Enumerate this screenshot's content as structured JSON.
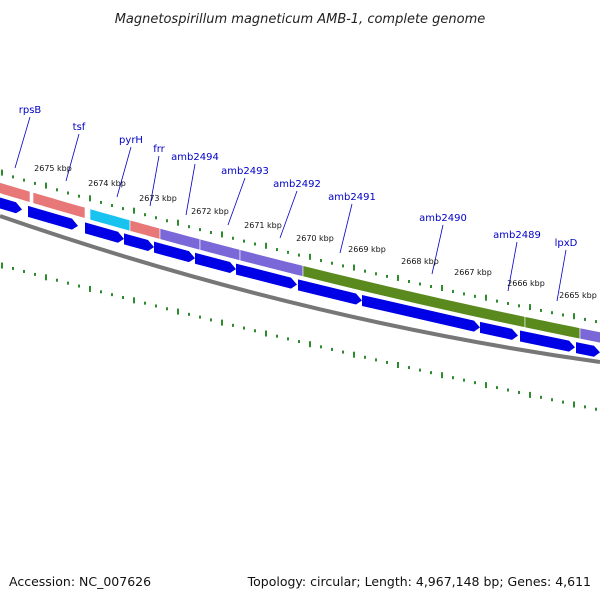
{
  "title": "Magnetospirillum magneticum AMB-1, complete genome",
  "footer": {
    "accession": "Accession: NC_007626",
    "topology": "Topology: circular; Length: 4,967,148 bp; Genes: 4,611"
  },
  "colors": {
    "backbone": "#777777",
    "tick": "#2e8b2e",
    "label_line": "#0000c8",
    "cds_blue": "#0000e6",
    "rrna_pink": "#e87878",
    "trna_cyan": "#19c3f0",
    "gene_purple": "#7b68d8",
    "gene_olive": "#5a8a1e"
  },
  "gene_labels": [
    "rpsB",
    "tsf",
    "pyrH",
    "frr",
    "amb2494",
    "amb2493",
    "amb2492",
    "amb2491",
    "amb2490",
    "amb2489",
    "lpxD"
  ],
  "kbp_labels": [
    "2675 kbp",
    "2674 kbp",
    "2673 kbp",
    "2672 kbp",
    "2671 kbp",
    "2670 kbp",
    "2669 kbp",
    "2668 kbp",
    "2667 kbp",
    "2666 kbp",
    "2665 kbp"
  ]
}
